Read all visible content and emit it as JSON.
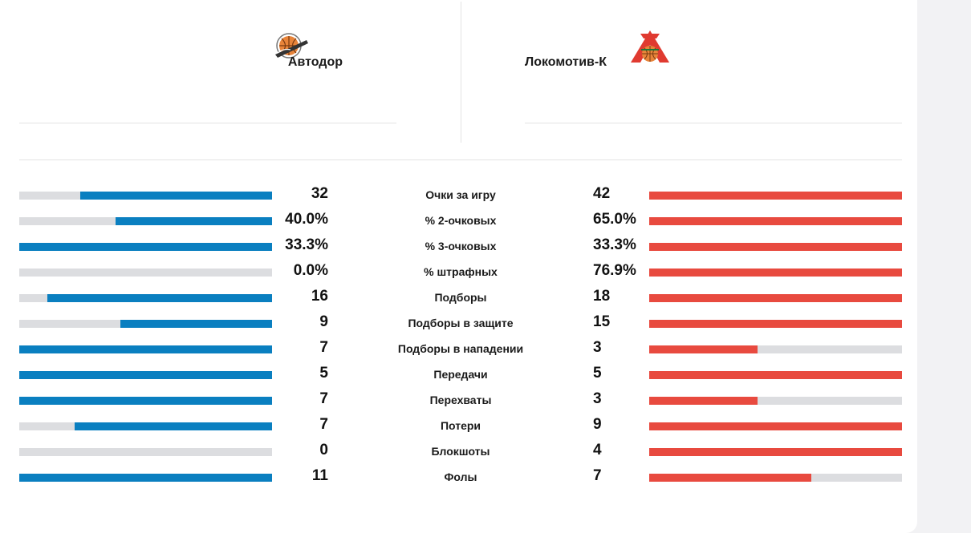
{
  "header": {
    "home": {
      "name": "Автодор",
      "logo_icon": "avtodor-logo-icon"
    },
    "away": {
      "name": "Локомотив-К",
      "logo_icon": "lokomotiv-logo-icon"
    }
  },
  "colors": {
    "home_bar": "#0a7fc0",
    "away_bar": "#e84a3f",
    "bar_track": "#dcdde0"
  },
  "stats": [
    {
      "label": "Очки за игру",
      "home": "32",
      "away": "42",
      "home_share": 0.76,
      "away_share": 1.0
    },
    {
      "label": "% 2-очковых",
      "home": "40.0%",
      "away": "65.0%",
      "home_share": 0.62,
      "away_share": 1.0
    },
    {
      "label": "% 3-очковых",
      "home": "33.3%",
      "away": "33.3%",
      "home_share": 1.0,
      "away_share": 1.0
    },
    {
      "label": "% штрафных",
      "home": "0.0%",
      "away": "76.9%",
      "home_share": 0.0,
      "away_share": 1.0
    },
    {
      "label": "Подборы",
      "home": "16",
      "away": "18",
      "home_share": 0.89,
      "away_share": 1.0
    },
    {
      "label": "Подборы в защите",
      "home": "9",
      "away": "15",
      "home_share": 0.6,
      "away_share": 1.0
    },
    {
      "label": "Подборы в нападении",
      "home": "7",
      "away": "3",
      "home_share": 1.0,
      "away_share": 0.43
    },
    {
      "label": "Передачи",
      "home": "5",
      "away": "5",
      "home_share": 1.0,
      "away_share": 1.0
    },
    {
      "label": "Перехваты",
      "home": "7",
      "away": "3",
      "home_share": 1.0,
      "away_share": 0.43
    },
    {
      "label": "Потери",
      "home": "7",
      "away": "9",
      "home_share": 0.78,
      "away_share": 1.0
    },
    {
      "label": "Блокшоты",
      "home": "0",
      "away": "4",
      "home_share": 0.0,
      "away_share": 1.0
    },
    {
      "label": "Фолы",
      "home": "11",
      "away": "7",
      "home_share": 1.0,
      "away_share": 0.64
    }
  ]
}
